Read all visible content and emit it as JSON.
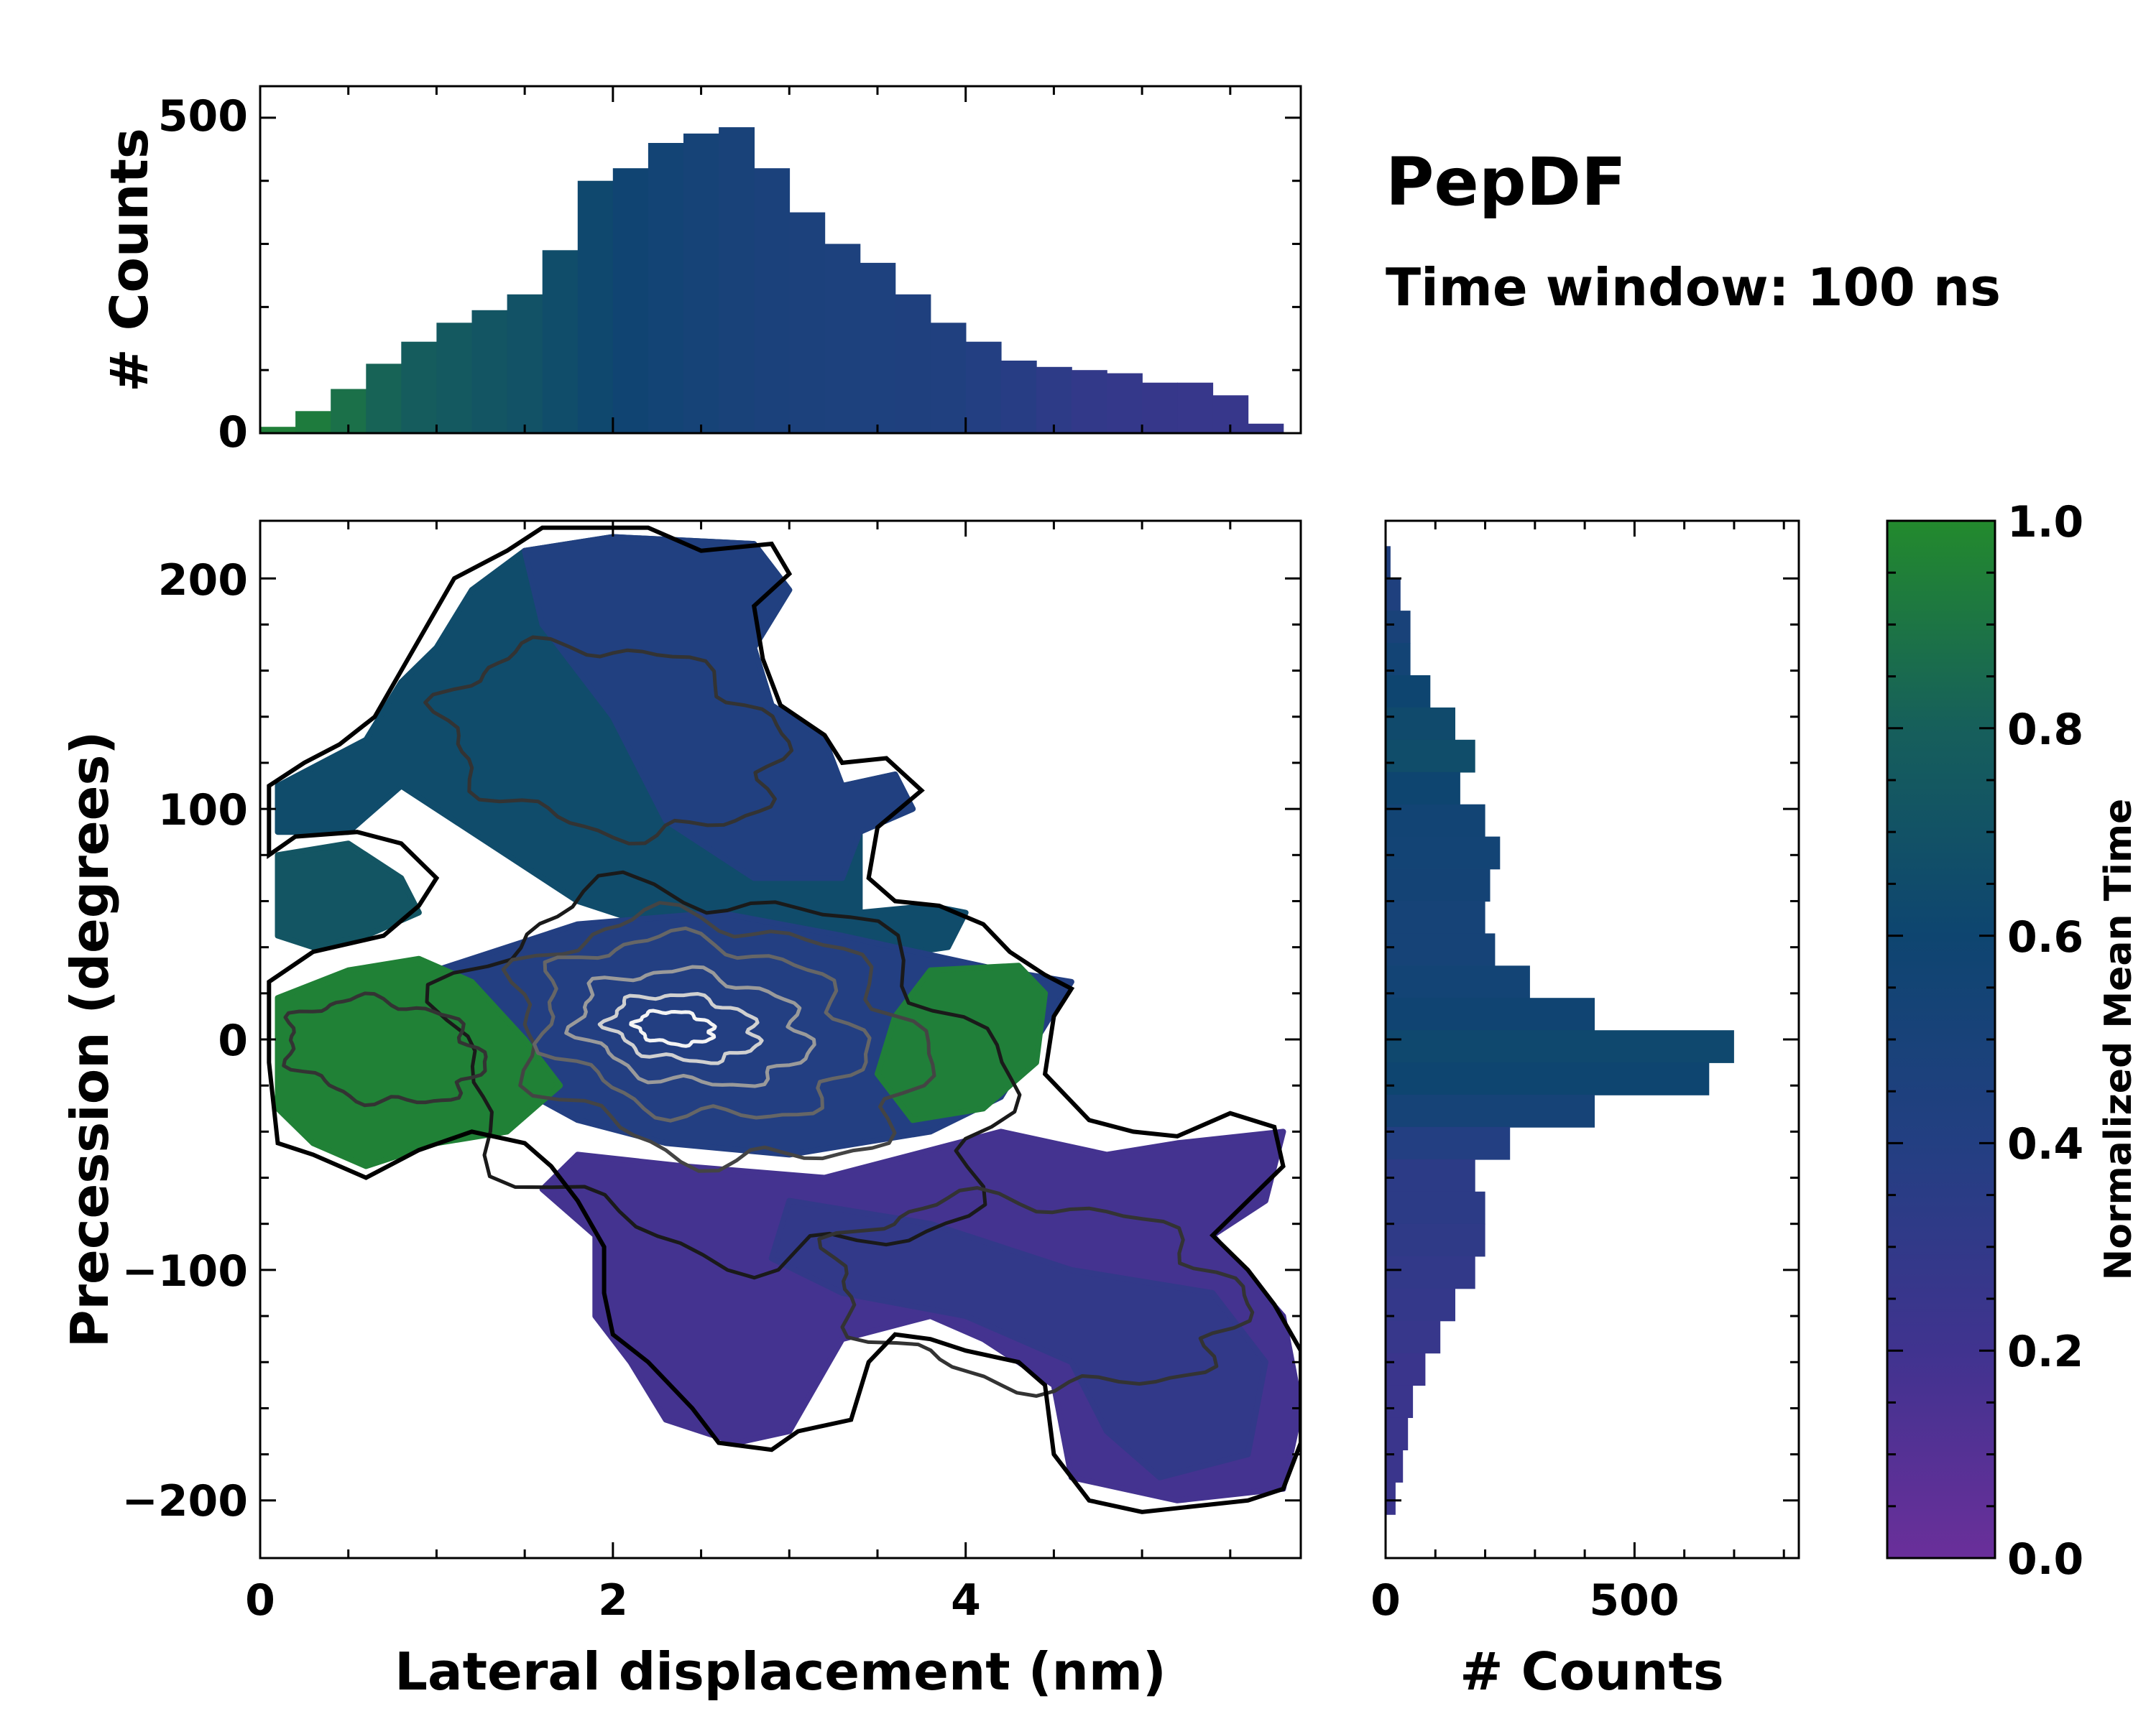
{
  "title": "PepDF",
  "subtitle": "Time window: 100 ns",
  "chart_data": [
    {
      "id": "top_hist",
      "type": "bar",
      "ylabel": "# Counts",
      "xlim": [
        0,
        5.9
      ],
      "ylim": [
        0,
        550
      ],
      "yticks": [
        "0",
        "500"
      ],
      "bin_centers": [
        0.1,
        0.3,
        0.5,
        0.7,
        0.9,
        1.1,
        1.3,
        1.5,
        1.7,
        1.9,
        2.1,
        2.3,
        2.5,
        2.7,
        2.9,
        3.1,
        3.3,
        3.5,
        3.7,
        3.9,
        4.1,
        4.3,
        4.5,
        4.7,
        4.9,
        5.1,
        5.3,
        5.5,
        5.7
      ],
      "values": [
        10,
        35,
        70,
        110,
        145,
        175,
        195,
        220,
        290,
        400,
        420,
        460,
        475,
        485,
        420,
        350,
        300,
        270,
        220,
        175,
        145,
        115,
        105,
        100,
        95,
        80,
        80,
        60,
        15
      ],
      "color_values": [
        0.95,
        0.93,
        0.88,
        0.82,
        0.78,
        0.75,
        0.72,
        0.7,
        0.66,
        0.62,
        0.58,
        0.55,
        0.52,
        0.5,
        0.48,
        0.47,
        0.46,
        0.45,
        0.44,
        0.43,
        0.4,
        0.37,
        0.33,
        0.3,
        0.28,
        0.27,
        0.26,
        0.26,
        0.27
      ]
    },
    {
      "id": "main_2d",
      "type": "heatmap",
      "xlabel": "Lateral displacement (nm)",
      "ylabel": "Precession (degrees)",
      "xlim": [
        0,
        5.9
      ],
      "ylim": [
        -225,
        225
      ],
      "xticks": [
        "0",
        "2",
        "4"
      ],
      "yticks": [
        "−200",
        "−100",
        "0",
        "100",
        "200"
      ],
      "regions": [
        {
          "name": "upper-left-lobe",
          "color_value": 0.65,
          "points": [
            [
              0.1,
              110
            ],
            [
              0.6,
              130
            ],
            [
              0.8,
              155
            ],
            [
              1.0,
              170
            ],
            [
              1.2,
              195
            ],
            [
              1.5,
              212
            ],
            [
              2.0,
              218
            ],
            [
              2.8,
              215
            ],
            [
              3.0,
              195
            ],
            [
              2.8,
              170
            ],
            [
              2.9,
              145
            ],
            [
              3.2,
              130
            ],
            [
              3.3,
              110
            ],
            [
              3.6,
              115
            ],
            [
              3.7,
              100
            ],
            [
              3.4,
              90
            ],
            [
              3.4,
              55
            ],
            [
              3.8,
              58
            ],
            [
              4.0,
              55
            ],
            [
              3.9,
              40
            ],
            [
              3.0,
              30
            ],
            [
              2.4,
              45
            ],
            [
              1.8,
              60
            ],
            [
              1.2,
              90
            ],
            [
              0.8,
              110
            ],
            [
              0.5,
              90
            ],
            [
              0.1,
              90
            ]
          ]
        },
        {
          "name": "left-wing",
          "color_value": 0.72,
          "points": [
            [
              0.1,
              80
            ],
            [
              0.5,
              85
            ],
            [
              0.8,
              70
            ],
            [
              0.9,
              55
            ],
            [
              0.6,
              45
            ],
            [
              0.3,
              40
            ],
            [
              0.1,
              45
            ]
          ]
        },
        {
          "name": "upper-center-blue",
          "color_value": 0.42,
          "points": [
            [
              1.5,
              212
            ],
            [
              2.0,
              218
            ],
            [
              2.8,
              215
            ],
            [
              3.0,
              195
            ],
            [
              2.8,
              170
            ],
            [
              2.9,
              145
            ],
            [
              3.2,
              130
            ],
            [
              3.3,
              110
            ],
            [
              3.6,
              115
            ],
            [
              3.7,
              100
            ],
            [
              3.4,
              90
            ],
            [
              3.3,
              70
            ],
            [
              2.8,
              70
            ],
            [
              2.3,
              95
            ],
            [
              2.0,
              140
            ],
            [
              1.6,
              180
            ]
          ]
        },
        {
          "name": "central-band",
          "color_value": 0.4,
          "points": [
            [
              1.0,
              30
            ],
            [
              1.8,
              50
            ],
            [
              2.6,
              55
            ],
            [
              3.3,
              45
            ],
            [
              4.2,
              30
            ],
            [
              4.6,
              25
            ],
            [
              4.4,
              0
            ],
            [
              4.2,
              -25
            ],
            [
              3.8,
              -40
            ],
            [
              3.0,
              -50
            ],
            [
              2.3,
              -45
            ],
            [
              1.8,
              -35
            ],
            [
              1.2,
              -10
            ]
          ]
        },
        {
          "name": "left-green-lobe",
          "color_value": 0.96,
          "points": [
            [
              0.1,
              18
            ],
            [
              0.5,
              30
            ],
            [
              0.9,
              35
            ],
            [
              1.2,
              25
            ],
            [
              1.5,
              0
            ],
            [
              1.7,
              -20
            ],
            [
              1.4,
              -40
            ],
            [
              1.0,
              -45
            ],
            [
              0.6,
              -55
            ],
            [
              0.3,
              -45
            ],
            [
              0.1,
              -30
            ]
          ]
        },
        {
          "name": "right-green-patch",
          "color_value": 0.95,
          "points": [
            [
              3.8,
              30
            ],
            [
              4.3,
              32
            ],
            [
              4.45,
              20
            ],
            [
              4.4,
              -10
            ],
            [
              4.1,
              -30
            ],
            [
              3.7,
              -35
            ],
            [
              3.5,
              -15
            ],
            [
              3.6,
              10
            ]
          ]
        },
        {
          "name": "lower-purple-lobe",
          "color_value": 0.18,
          "points": [
            [
              1.8,
              -50
            ],
            [
              2.4,
              -55
            ],
            [
              3.2,
              -60
            ],
            [
              4.2,
              -40
            ],
            [
              4.8,
              -50
            ],
            [
              5.2,
              -45
            ],
            [
              5.8,
              -40
            ],
            [
              5.7,
              -70
            ],
            [
              5.4,
              -85
            ],
            [
              5.8,
              -120
            ],
            [
              5.9,
              -160
            ],
            [
              5.8,
              -195
            ],
            [
              5.2,
              -200
            ],
            [
              4.6,
              -190
            ],
            [
              4.5,
              -150
            ],
            [
              4.1,
              -130
            ],
            [
              3.8,
              -120
            ],
            [
              3.3,
              -130
            ],
            [
              3.0,
              -170
            ],
            [
              2.7,
              -175
            ],
            [
              2.3,
              -165
            ],
            [
              2.1,
              -140
            ],
            [
              1.9,
              -120
            ],
            [
              1.9,
              -85
            ],
            [
              1.6,
              -65
            ]
          ]
        },
        {
          "name": "lower-dark-core",
          "color_value": 0.3,
          "points": [
            [
              3.0,
              -70
            ],
            [
              3.8,
              -80
            ],
            [
              4.6,
              -100
            ],
            [
              5.4,
              -110
            ],
            [
              5.7,
              -140
            ],
            [
              5.6,
              -180
            ],
            [
              5.1,
              -190
            ],
            [
              4.8,
              -170
            ],
            [
              4.6,
              -140
            ],
            [
              4.0,
              -120
            ],
            [
              3.3,
              -110
            ],
            [
              2.9,
              -95
            ]
          ]
        }
      ],
      "boundary_points": [
        [
          1.1,
          200
        ],
        [
          1.4,
          212
        ],
        [
          1.6,
          222
        ],
        [
          2.2,
          222
        ],
        [
          2.5,
          212
        ],
        [
          2.9,
          215
        ],
        [
          3.0,
          202
        ],
        [
          2.8,
          188
        ],
        [
          2.85,
          165
        ],
        [
          2.95,
          145
        ],
        [
          3.2,
          132
        ],
        [
          3.3,
          120
        ],
        [
          3.55,
          122
        ],
        [
          3.75,
          108
        ],
        [
          3.5,
          92
        ],
        [
          3.45,
          70
        ],
        [
          3.6,
          60
        ],
        [
          3.85,
          58
        ],
        [
          4.1,
          50
        ],
        [
          4.25,
          38
        ],
        [
          4.45,
          28
        ],
        [
          4.6,
          22
        ],
        [
          4.5,
          10
        ],
        [
          4.45,
          -15
        ],
        [
          4.7,
          -35
        ],
        [
          4.95,
          -40
        ],
        [
          5.2,
          -42
        ],
        [
          5.5,
          -32
        ],
        [
          5.75,
          -38
        ],
        [
          5.8,
          -55
        ],
        [
          5.6,
          -70
        ],
        [
          5.4,
          -85
        ],
        [
          5.6,
          -100
        ],
        [
          5.75,
          -115
        ],
        [
          5.9,
          -135
        ],
        [
          5.9,
          -175
        ],
        [
          5.8,
          -195
        ],
        [
          5.6,
          -200
        ],
        [
          5.0,
          -205
        ],
        [
          4.7,
          -200
        ],
        [
          4.5,
          -180
        ],
        [
          4.45,
          -150
        ],
        [
          4.3,
          -140
        ],
        [
          4.0,
          -135
        ],
        [
          3.8,
          -130
        ],
        [
          3.6,
          -128
        ],
        [
          3.45,
          -140
        ],
        [
          3.35,
          -165
        ],
        [
          3.05,
          -170
        ],
        [
          2.9,
          -178
        ],
        [
          2.6,
          -175
        ],
        [
          2.45,
          -160
        ],
        [
          2.2,
          -140
        ],
        [
          2.0,
          -128
        ],
        [
          1.95,
          -110
        ],
        [
          1.95,
          -90
        ],
        [
          1.8,
          -70
        ],
        [
          1.65,
          -55
        ],
        [
          1.5,
          -45
        ],
        [
          1.2,
          -40
        ],
        [
          0.9,
          -48
        ],
        [
          0.6,
          -60
        ],
        [
          0.3,
          -50
        ],
        [
          0.1,
          -45
        ],
        [
          0.05,
          -10
        ],
        [
          0.05,
          25
        ],
        [
          0.3,
          38
        ],
        [
          0.7,
          45
        ],
        [
          0.9,
          58
        ],
        [
          1.0,
          70
        ],
        [
          0.8,
          85
        ],
        [
          0.55,
          90
        ],
        [
          0.2,
          88
        ],
        [
          0.05,
          80
        ],
        [
          0.05,
          110
        ],
        [
          0.25,
          120
        ],
        [
          0.45,
          128
        ],
        [
          0.65,
          140
        ],
        [
          0.8,
          160
        ],
        [
          0.95,
          180
        ]
      ],
      "contour_levels": [
        {
          "name": "contour-outer",
          "rx": 1.55,
          "ry": 78,
          "cx": 2.65,
          "cy": -15,
          "tone": "#1a1a1a"
        },
        {
          "name": "contour-mid-1",
          "rx": 1.15,
          "ry": 52,
          "cx": 2.6,
          "cy": 0,
          "tone": "#444444"
        },
        {
          "name": "contour-mid-2",
          "rx": 0.9,
          "ry": 38,
          "cx": 2.5,
          "cy": 5,
          "tone": "#666666"
        },
        {
          "name": "contour-inner-1",
          "rx": 0.65,
          "ry": 24,
          "cx": 2.45,
          "cy": 5,
          "tone": "#9a9a9a"
        },
        {
          "name": "contour-inner-2",
          "rx": 0.42,
          "ry": 14,
          "cx": 2.4,
          "cy": 5,
          "tone": "#d0d0d0"
        },
        {
          "name": "contour-core",
          "rx": 0.22,
          "ry": 7,
          "cx": 2.35,
          "cy": 5,
          "tone": "#f4f4f4"
        },
        {
          "name": "contour-upper-lobe",
          "rx": 0.95,
          "ry": 40,
          "cx": 2.0,
          "cy": 130,
          "tone": "#333333"
        },
        {
          "name": "contour-lower-lobe",
          "rx": 1.15,
          "ry": 40,
          "cx": 4.4,
          "cy": -110,
          "tone": "#333333"
        },
        {
          "name": "contour-left-lobe",
          "rx": 0.55,
          "ry": 22,
          "cx": 0.7,
          "cy": -5,
          "tone": "#333333"
        }
      ]
    },
    {
      "id": "right_hist",
      "type": "bar",
      "orientation": "horizontal",
      "xlabel": "# Counts",
      "xlim": [
        0,
        830
      ],
      "xticks": [
        "0",
        "500"
      ],
      "ylim": [
        -225,
        225
      ],
      "bin_centers": [
        207,
        193,
        179,
        165,
        151,
        137,
        123,
        109,
        95,
        81,
        67,
        53,
        39,
        25,
        11,
        -3,
        -17,
        -31,
        -45,
        -59,
        -73,
        -87,
        -101,
        -115,
        -129,
        -143,
        -157,
        -171,
        -185,
        -199
      ],
      "values": [
        10,
        30,
        50,
        50,
        90,
        140,
        180,
        150,
        200,
        230,
        210,
        200,
        220,
        290,
        420,
        700,
        650,
        420,
        250,
        180,
        200,
        200,
        180,
        140,
        110,
        80,
        55,
        45,
        35,
        20
      ],
      "color_values": [
        0.42,
        0.44,
        0.5,
        0.55,
        0.6,
        0.64,
        0.66,
        0.6,
        0.56,
        0.55,
        0.54,
        0.52,
        0.52,
        0.55,
        0.58,
        0.62,
        0.6,
        0.52,
        0.4,
        0.34,
        0.34,
        0.32,
        0.3,
        0.28,
        0.26,
        0.24,
        0.24,
        0.24,
        0.24,
        0.24
      ]
    },
    {
      "id": "colorbar",
      "type": "colorbar",
      "label": "Normalized Mean Time",
      "ticks": [
        "0.0",
        "0.2",
        "0.4",
        "0.6",
        "0.8",
        "1.0"
      ],
      "range": [
        0,
        1
      ],
      "colors": [
        "#6a2f9a",
        "#40338f",
        "#233f82",
        "#0e4570",
        "#165f5b",
        "#238a2d"
      ]
    }
  ]
}
